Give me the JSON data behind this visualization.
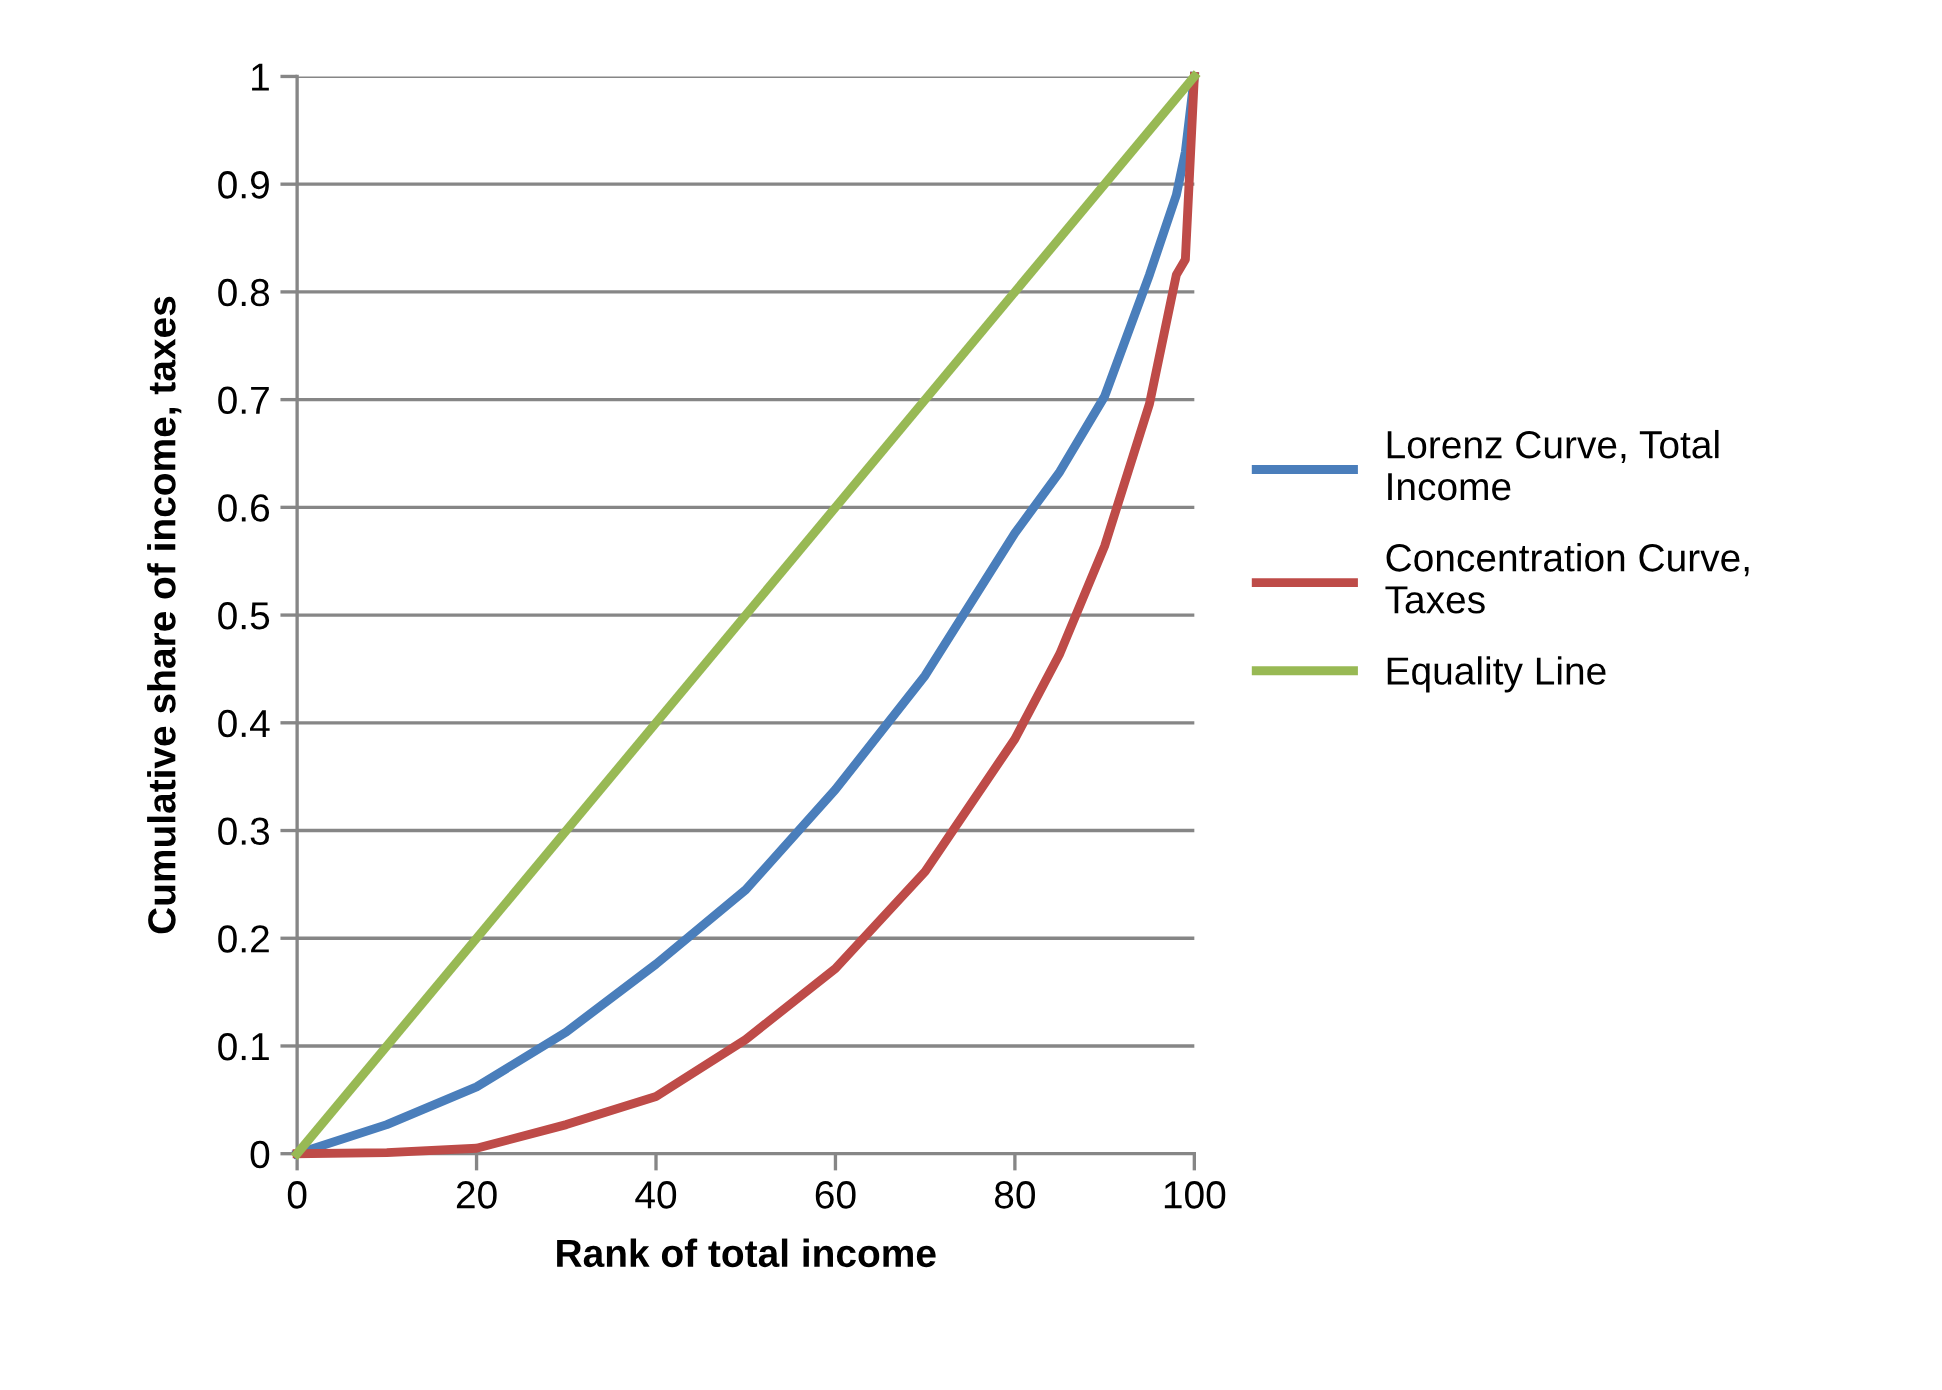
{
  "chart_data": {
    "type": "line",
    "xlabel": "Rank of total income",
    "ylabel": "Cumulative share of income, taxes",
    "xlim": [
      0,
      100
    ],
    "xticks": [
      0,
      20,
      40,
      60,
      80,
      100
    ],
    "ylim": [
      0,
      1
    ],
    "yticks": [
      0,
      0.1,
      0.2,
      0.3,
      0.4,
      0.5,
      0.6,
      0.7,
      0.8,
      0.9,
      1
    ],
    "grid": "y",
    "legend": "right",
    "marker": "none",
    "line_style": "solid",
    "series": [
      {
        "name": "Lorenz Curve, Total Income",
        "color": "#4a7ebb",
        "x": [
          0,
          10,
          20,
          30,
          40,
          50,
          60,
          70,
          80,
          85,
          90,
          95,
          98,
          99,
          100
        ],
        "values": [
          0,
          0.027,
          0.062,
          0.113,
          0.176,
          0.245,
          0.338,
          0.444,
          0.576,
          0.633,
          0.703,
          0.816,
          0.89,
          0.93,
          1
        ]
      },
      {
        "name": "Concentration Curve, Taxes",
        "color": "#be4b48",
        "x": [
          0,
          10,
          20,
          30,
          40,
          50,
          60,
          70,
          80,
          85,
          90,
          95,
          98,
          99,
          100
        ],
        "values": [
          0,
          0.001,
          0.005,
          0.027,
          0.053,
          0.106,
          0.172,
          0.262,
          0.385,
          0.464,
          0.564,
          0.696,
          0.816,
          0.83,
          1
        ]
      },
      {
        "name": "Equality Line",
        "color": "#98b954",
        "x": [
          0,
          100
        ],
        "values": [
          0,
          1
        ]
      }
    ]
  }
}
